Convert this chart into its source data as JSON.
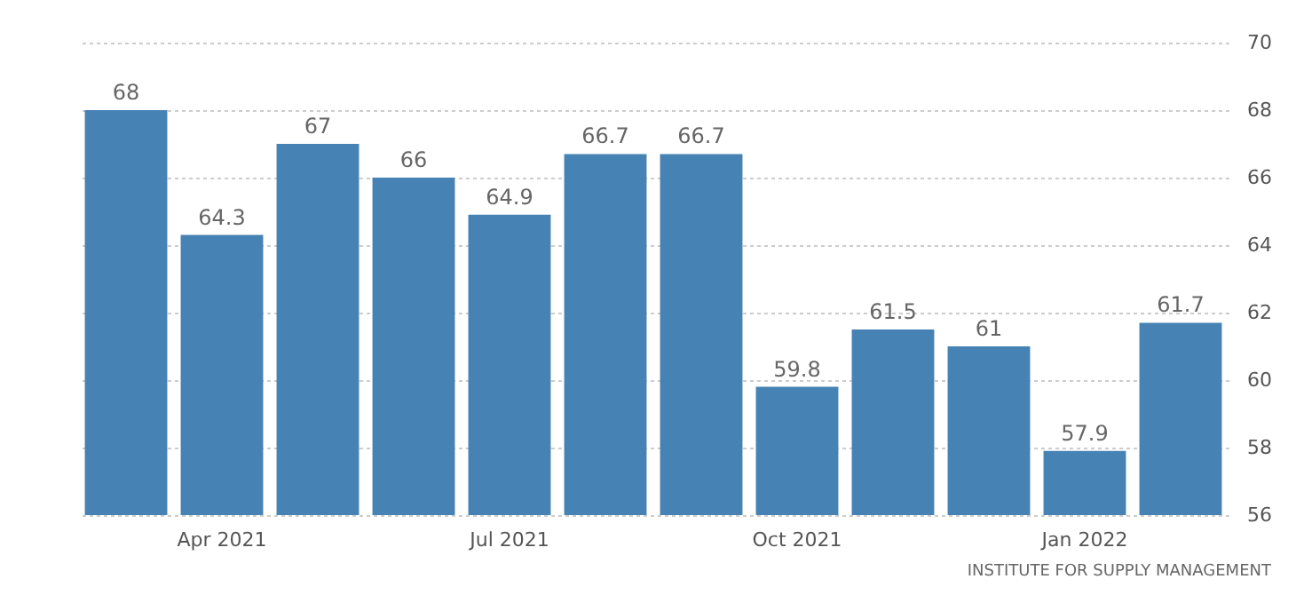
{
  "chart_data": {
    "type": "bar",
    "categories": [
      null,
      "Apr 2021",
      null,
      null,
      "Jul 2021",
      null,
      null,
      "Oct 2021",
      null,
      null,
      "Jan 2022",
      null
    ],
    "values": [
      68,
      64.3,
      67,
      66,
      64.9,
      66.7,
      66.7,
      59.8,
      61.5,
      61,
      57.9,
      61.7
    ],
    "color": "#4682b4",
    "ylim": [
      56,
      70
    ],
    "yticks": [
      56,
      58,
      60,
      62,
      64,
      66,
      68,
      70
    ],
    "grid": "y",
    "data_labels": true,
    "annotations": [
      "INSTITUTE FOR SUPPLY MANAGEMENT"
    ]
  }
}
